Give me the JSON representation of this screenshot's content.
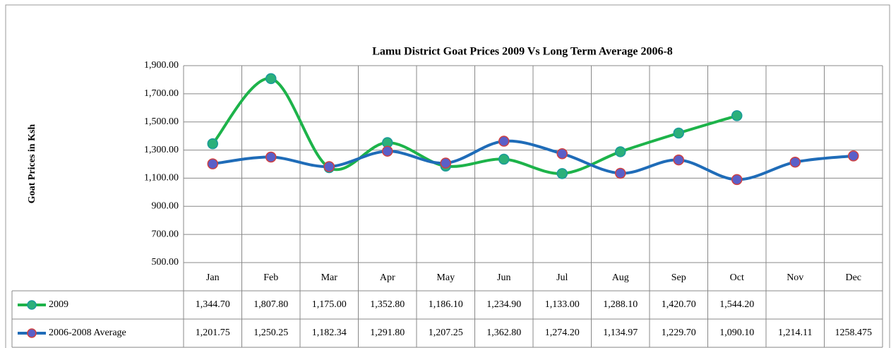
{
  "chart_data": {
    "type": "line",
    "title": "Lamu District Goat Prices 2009 Vs Long Term Average 2006-8",
    "y_label": "Goat Prices in Ksh",
    "categories": [
      "Jan",
      "Feb",
      "Mar",
      "Apr",
      "May",
      "Jun",
      "Jul",
      "Aug",
      "Sep",
      "Oct",
      "Nov",
      "Dec"
    ],
    "series": [
      {
        "name": "2009",
        "color": "#1db34a",
        "marker_fill": "#2bb07a",
        "marker_edge": "#1a9a9a",
        "values": [
          1344.7,
          1807.8,
          1175.0,
          1352.8,
          1186.1,
          1234.9,
          1133.0,
          1288.1,
          1420.7,
          1544.2,
          null,
          null
        ],
        "value_labels": [
          "1,344.70",
          "1,807.80",
          "1,175.00",
          "1,352.80",
          "1,186.10",
          "1,234.90",
          "1,133.00",
          "1,288.10",
          "1,420.70",
          "1,544.20",
          null,
          null
        ]
      },
      {
        "name": "2006-2008 Average",
        "color": "#1f6cb8",
        "marker_fill": "#5a5fc8",
        "marker_edge": "#d04040",
        "values": [
          1201.75,
          1250.25,
          1182.34,
          1291.8,
          1207.25,
          1362.8,
          1274.2,
          1134.97,
          1229.7,
          1090.1,
          1214.11,
          1258.475
        ],
        "value_labels": [
          "1,201.75",
          "1,250.25",
          "1,182.34",
          "1,291.80",
          "1,207.25",
          "1,362.80",
          "1,274.20",
          "1,134.97",
          "1,229.70",
          "1,090.10",
          "1,214.11",
          "1258.475"
        ]
      }
    ],
    "ylim": [
      500,
      1900
    ],
    "yticks": [
      {
        "value": 500,
        "label": "500.00"
      },
      {
        "value": 700,
        "label": "700.00"
      },
      {
        "value": 900,
        "label": "900.00"
      },
      {
        "value": 1100,
        "label": "1,100.00"
      },
      {
        "value": 1300,
        "label": "1,300.00"
      },
      {
        "value": 1500,
        "label": "1,500.00"
      },
      {
        "value": 1700,
        "label": "1,700.00"
      },
      {
        "value": 1900,
        "label": "1,900.00"
      }
    ],
    "grid": true
  }
}
